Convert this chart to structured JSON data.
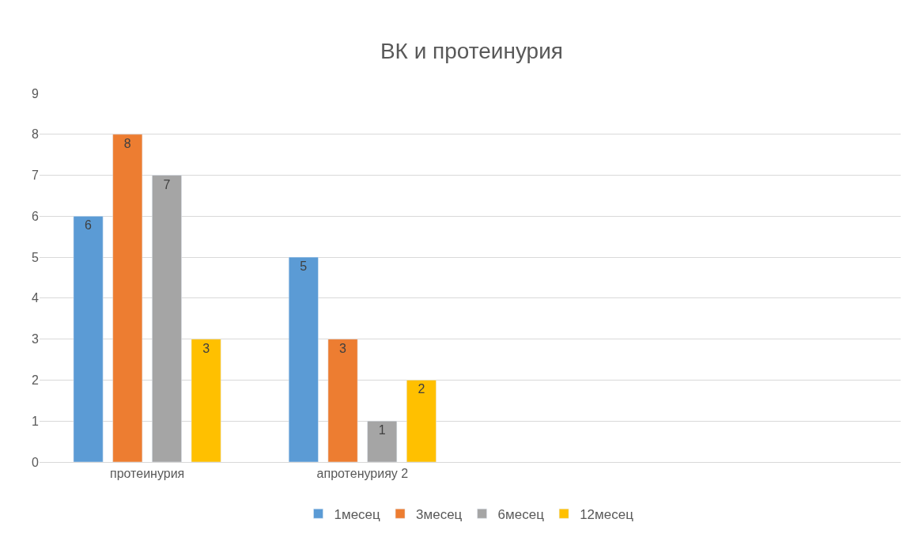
{
  "chart_data": {
    "type": "bar",
    "title": "ВК и протеинурия",
    "categories": [
      "протеинурия",
      "апротенурияу 2",
      null,
      null
    ],
    "series": [
      {
        "name": "1месец",
        "color": "#5b9bd5",
        "values": [
          6,
          5,
          null,
          null
        ]
      },
      {
        "name": "3месец",
        "color": "#ed7d31",
        "values": [
          8,
          3,
          null,
          null
        ]
      },
      {
        "name": "6месец",
        "color": "#a5a5a5",
        "values": [
          7,
          1,
          null,
          null
        ]
      },
      {
        "name": "12месец",
        "color": "#ffc000",
        "values": [
          3,
          2,
          null,
          null
        ]
      }
    ],
    "ylim": [
      0,
      9
    ],
    "yticks": [
      0,
      1,
      2,
      3,
      4,
      5,
      6,
      7,
      8,
      9
    ],
    "grid": "y",
    "legend": "bottom",
    "data_labels": true
  }
}
